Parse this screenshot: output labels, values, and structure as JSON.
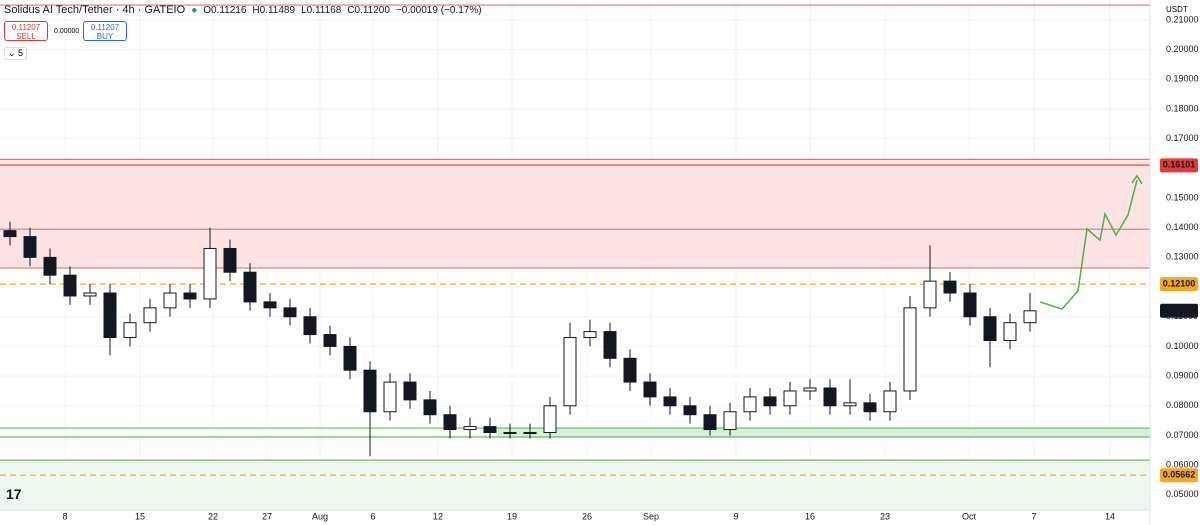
{
  "header": {
    "symbol": "Solidus AI Tech/Tether · 4h · GATEIO",
    "open": "O0.11216",
    "high": "H0.11489",
    "low": "L0.11168",
    "close": "C0.11200",
    "change": "−0.00019 (−0.17%)",
    "sell_price": "0.11207",
    "sell": "SELL",
    "spread": "0.00000",
    "buy_price": "0.11207",
    "buy": "BUY",
    "indicator_count": "5",
    "currency": "USDT"
  },
  "chart_data": {
    "type": "candlestick",
    "open": [
      0.139,
      0.137,
      0.13,
      0.124,
      0.117,
      0.118,
      0.103,
      0.108,
      0.113,
      0.118,
      0.116,
      0.133,
      0.125,
      0.115,
      0.113,
      0.11,
      0.104,
      0.1,
      0.092,
      0.078,
      0.088,
      0.082,
      0.077,
      0.072,
      0.073,
      0.071,
      0.071,
      0.071,
      0.08,
      0.103,
      0.105,
      0.096,
      0.088,
      0.083,
      0.08,
      0.077,
      0.072,
      0.078,
      0.083,
      0.08,
      0.085,
      0.086,
      0.08,
      0.081,
      0.078,
      0.085,
      0.113,
      0.122,
      0.118,
      0.11,
      0.102,
      0.108
    ],
    "high": [
      0.142,
      0.14,
      0.133,
      0.127,
      0.121,
      0.121,
      0.111,
      0.116,
      0.121,
      0.121,
      0.14,
      0.136,
      0.128,
      0.118,
      0.116,
      0.113,
      0.107,
      0.103,
      0.095,
      0.091,
      0.091,
      0.085,
      0.08,
      0.076,
      0.076,
      0.074,
      0.074,
      0.083,
      0.108,
      0.109,
      0.108,
      0.099,
      0.091,
      0.086,
      0.083,
      0.08,
      0.081,
      0.086,
      0.086,
      0.088,
      0.089,
      0.089,
      0.089,
      0.084,
      0.088,
      0.117,
      0.134,
      0.125,
      0.121,
      0.113,
      0.111,
      0.118
    ],
    "low": [
      0.134,
      0.127,
      0.121,
      0.114,
      0.114,
      0.097,
      0.1,
      0.105,
      0.11,
      0.113,
      0.113,
      0.122,
      0.112,
      0.11,
      0.107,
      0.101,
      0.097,
      0.089,
      0.063,
      0.075,
      0.079,
      0.074,
      0.069,
      0.069,
      0.069,
      0.069,
      0.069,
      0.069,
      0.077,
      0.1,
      0.093,
      0.085,
      0.08,
      0.077,
      0.074,
      0.07,
      0.07,
      0.075,
      0.077,
      0.077,
      0.082,
      0.077,
      0.077,
      0.075,
      0.075,
      0.082,
      0.11,
      0.115,
      0.107,
      0.093,
      0.099,
      0.105
    ],
    "close": [
      0.137,
      0.13,
      0.124,
      0.117,
      0.118,
      0.103,
      0.108,
      0.113,
      0.118,
      0.116,
      0.133,
      0.125,
      0.115,
      0.113,
      0.11,
      0.104,
      0.1,
      0.092,
      0.078,
      0.088,
      0.082,
      0.077,
      0.072,
      0.073,
      0.071,
      0.071,
      0.071,
      0.08,
      0.103,
      0.105,
      0.096,
      0.088,
      0.083,
      0.08,
      0.077,
      0.072,
      0.078,
      0.083,
      0.08,
      0.085,
      0.086,
      0.08,
      0.081,
      0.078,
      0.085,
      0.113,
      0.122,
      0.118,
      0.11,
      0.102,
      0.108,
      0.112
    ],
    "up_color": "#ffffff",
    "down_color": "#131722",
    "projection": {
      "color": "#4caf50",
      "x": [
        51.5,
        52.6,
        53.4,
        53.85,
        54.5,
        54.75,
        55.3,
        55.9,
        56.35
      ],
      "values": [
        0.115,
        0.1126,
        0.1187,
        0.1396,
        0.1358,
        0.1446,
        0.1375,
        0.1443,
        0.1561
      ]
    },
    "zones": [
      {
        "top": 0.163,
        "bottom": 0.1264,
        "from": -0.5,
        "color": "#fde3e3"
      },
      {
        "top": 0.0725,
        "bottom": 0.0695,
        "from": 24.4,
        "color": "#d7f0d8"
      },
      {
        "top": 0.0617,
        "bottom": 0.0449,
        "from": -0.5,
        "color": "#eef8ee"
      }
    ],
    "levels": [
      {
        "value": 0.215,
        "color": "#e57373",
        "dashed": false
      },
      {
        "value": 0.163,
        "color": "#e57373",
        "dashed": false
      },
      {
        "value": 0.1611,
        "color": "#e53935",
        "dashed": false
      },
      {
        "value": 0.1395,
        "color": "#e57373",
        "dashed": false
      },
      {
        "value": 0.1264,
        "color": "#e57373",
        "dashed": false
      },
      {
        "value": 0.121,
        "color": "#f5a623",
        "dashed": true
      },
      {
        "value": 0.0725,
        "color": "#66bb6a",
        "dashed": false
      },
      {
        "value": 0.0695,
        "color": "#66bb6a",
        "dashed": false
      },
      {
        "value": 0.0617,
        "color": "#66bb6a",
        "dashed": false
      },
      {
        "value": 0.05662,
        "color": "#f5a623",
        "dashed": true
      }
    ],
    "price_tags": [
      {
        "price": 0.16101,
        "color": "#e53935",
        "text_color": "#ffffff"
      },
      {
        "price": {
          "value": 0.121,
          "label": "0.12100"
        },
        "color": "#f5a623",
        "text_color": "#131722"
      },
      {
        "price": {
          "value": 0.112,
          "label": "0.11200"
        },
        "color": "#131722",
        "text_color": "#ffffff"
      },
      {
        "price": 0.05662,
        "color": "#f5a623",
        "text_color": "#131722"
      }
    ],
    "xlim": [
      -0.5,
      57
    ],
    "ylim": [
      0.0449,
      0.2167
    ],
    "xticks": [
      {
        "value": 2.75,
        "label": "8"
      },
      {
        "value": 6.5,
        "label": "15"
      },
      {
        "value": 10.15,
        "label": "22"
      },
      {
        "value": 12.85,
        "label": "27"
      },
      {
        "value": 15.5,
        "label": "Aug"
      },
      {
        "value": 18.15,
        "label": "6"
      },
      {
        "value": 21.4,
        "label": "12"
      },
      {
        "value": 25.1,
        "label": "19"
      },
      {
        "value": 28.85,
        "label": "26"
      },
      {
        "value": 32.05,
        "label": "Sep"
      },
      {
        "value": 36.3,
        "label": "9"
      },
      {
        "value": 40,
        "label": "16"
      },
      {
        "value": 43.75,
        "label": "23"
      },
      {
        "value": 47.95,
        "label": "Oct"
      },
      {
        "value": 51.2,
        "label": "7"
      },
      {
        "value": 55,
        "label": "14"
      }
    ],
    "yticks": [
      {
        "value": 0.05,
        "label": "0.05000"
      },
      {
        "value": 0.06,
        "label": "0.06000"
      },
      {
        "value": 0.07,
        "label": "0.07000"
      },
      {
        "value": 0.08,
        "label": "0.08000"
      },
      {
        "value": 0.09,
        "label": "0.09000"
      },
      {
        "value": 0.1,
        "label": "0.10000"
      },
      {
        "value": 0.11,
        "label": "0.11000"
      },
      {
        "value": 0.12,
        "label": "0.12000"
      },
      {
        "value": 0.13,
        "label": "0.13000"
      },
      {
        "value": 0.14,
        "label": "0.14000"
      },
      {
        "value": 0.15,
        "label": "0.15000"
      },
      {
        "value": 0.16,
        "label": "0.16000"
      },
      {
        "value": 0.17,
        "label": "0.17000"
      },
      {
        "value": 0.18,
        "label": "0.18000"
      },
      {
        "value": 0.19,
        "label": "0.19000"
      },
      {
        "value": 0.2,
        "label": "0.20000"
      },
      {
        "value": 0.21,
        "label": "0.21000"
      }
    ],
    "grid": true
  }
}
